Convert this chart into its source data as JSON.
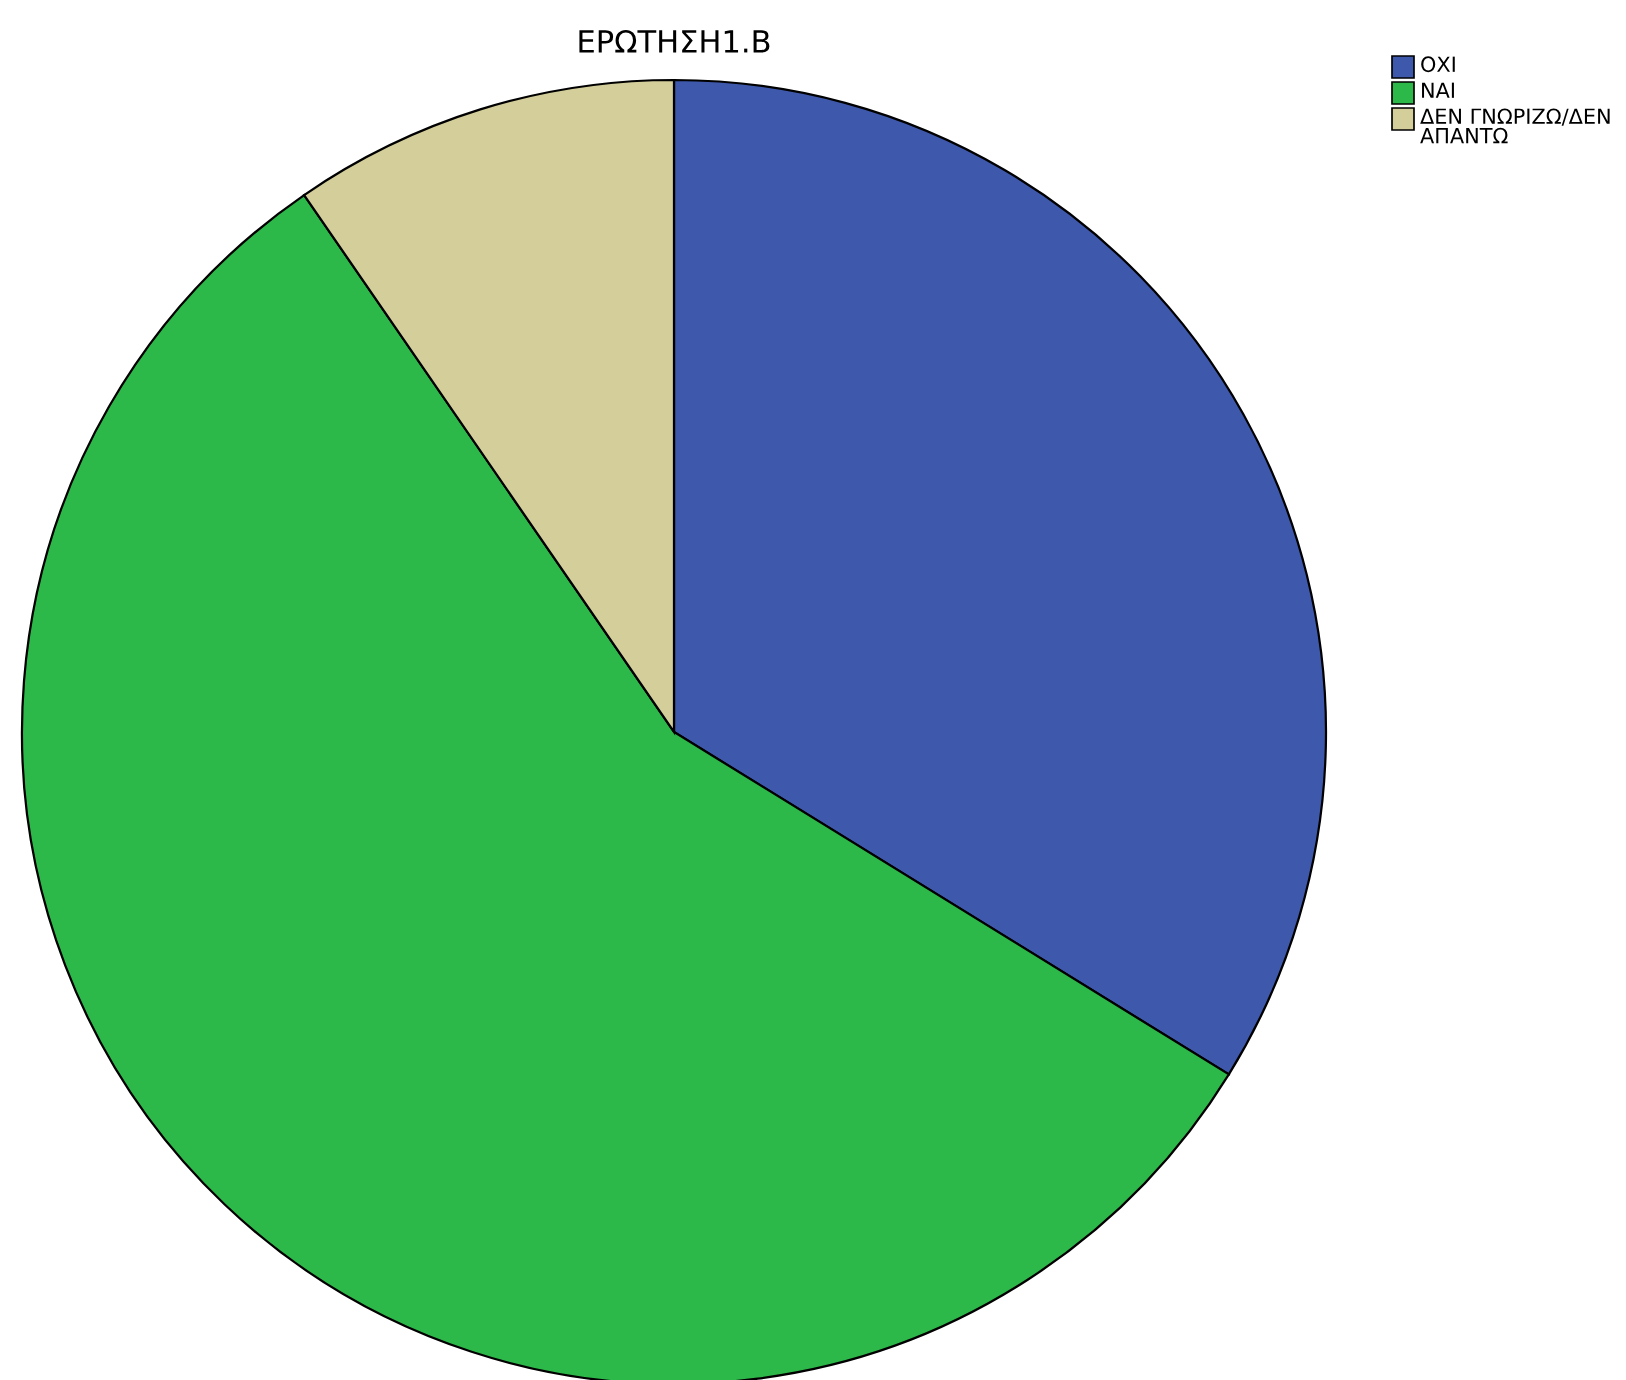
{
  "chart_data": {
    "type": "pie",
    "title": "ΕΡΩΤΗΣΗ1.Β",
    "categories": [
      "ΟΧΙ",
      "ΝΑΙ",
      "ΔΕΝ ΓΝΩΡΙΖΩ/ΔΕΝ ΑΠΑΝΤΩ"
    ],
    "values": [
      33.8,
      56.6,
      9.6
    ],
    "colors": [
      "#3e58ac",
      "#2db84a",
      "#d3ce9a"
    ],
    "legend": "top right"
  }
}
